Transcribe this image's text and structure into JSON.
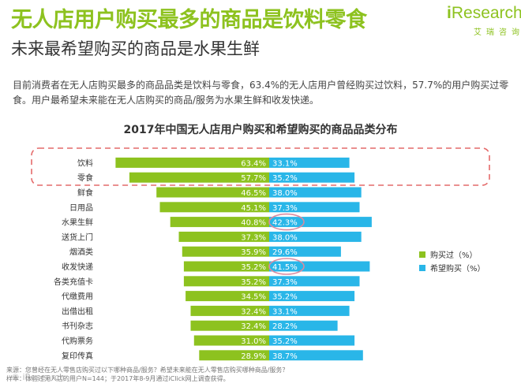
{
  "header": {
    "title": "无人店用户购买最多的商品是饮料零食",
    "subtitle": "未来最希望购买的商品是水果生鲜",
    "logo_text": "Research",
    "logo_letter": "i",
    "logo_cn": "艾瑞咨询",
    "description": "目前消费者在无人店购买最多的商品品类是饮料与零食，63.4%的无人店用户曾经购买过饮料，57.7%的用户购买过零食。用户最希望未来能在无人店购买的商品/服务为水果生鲜和收发快递。"
  },
  "colors": {
    "green": "#8dc21f",
    "blue": "#29b6e8",
    "highlight_dash": "#e46a6a",
    "circle": "#d98aa0"
  },
  "chart_data": {
    "type": "bar",
    "title": "2017年中国无人店用户购买和希望购买的商品品类分布",
    "categories": [
      "饮料",
      "零食",
      "鲜食",
      "日用品",
      "水果生鲜",
      "送货上门",
      "烟酒类",
      "收发快递",
      "各类充值卡",
      "代缴费用",
      "出借出租",
      "书刊杂志",
      "代购票务",
      "复印传真"
    ],
    "series": [
      {
        "name": "购买过（%）",
        "values": [
          63.4,
          57.7,
          46.5,
          45.1,
          40.8,
          37.3,
          35.9,
          35.2,
          35.2,
          34.5,
          32.4,
          32.4,
          31.0,
          28.9
        ]
      },
      {
        "name": "希望购买（%）",
        "values": [
          33.1,
          35.2,
          38.0,
          37.3,
          42.3,
          38.0,
          29.6,
          41.5,
          37.3,
          35.2,
          33.1,
          28.2,
          35.2,
          38.7
        ]
      }
    ],
    "value_labels": {
      "bought": [
        "63.4%",
        "57.7%",
        "46.5%",
        "45.1%",
        "40.8%",
        "37.3%",
        "35.9%",
        "35.2%",
        "35.2%",
        "34.5%",
        "32.4%",
        "32.4%",
        "31.0%",
        "28.9%"
      ],
      "wanted": [
        "33.1%",
        "35.2%",
        "38.0%",
        "37.3%",
        "42.3%",
        "38.0%",
        "29.6%",
        "41.5%",
        "37.3%",
        "35.2%",
        "33.1%",
        "28.2%",
        "35.2%",
        "38.7%"
      ]
    },
    "highlighted_rows": [
      "饮料",
      "零食"
    ],
    "circled_values": [
      "42.3%",
      "41.5%"
    ],
    "legend_position": "right",
    "orientation": "horizontal"
  },
  "footnote": {
    "line1": "来源：您曾经在无人零售店购买过以下哪种商品/服务？希望未来能在无人零售店购买哪种商品/服务？",
    "line2": "样本：体验过无人店的用户N=144；于2017年8-9月通过iClick网上调查获得。"
  },
  "watermark": "© iResearch"
}
